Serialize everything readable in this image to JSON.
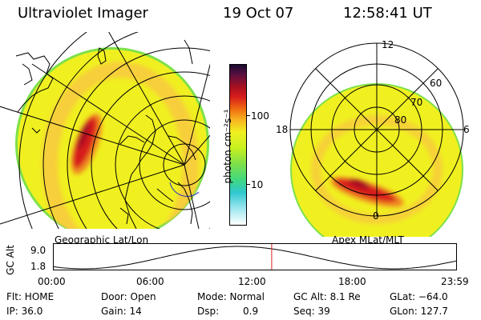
{
  "header": {
    "title": "Ultraviolet Imager",
    "date": "19 Oct 07",
    "time": "12:58:41 UT"
  },
  "colorbar": {
    "unit_label": "photon cm⁻²s⁻¹",
    "tick_100": "100",
    "tick_10": "10"
  },
  "left_panel": {
    "caption": "Geographic Lat/Lon"
  },
  "right_panel": {
    "caption": "Apex MLat/MLT",
    "mlt_12": "12",
    "mlt_18": "18",
    "mlt_6": "6",
    "mlt_0": "0",
    "lat_60": "60",
    "lat_70": "70",
    "lat_80": "80"
  },
  "orbit": {
    "ylabel": "GC Alt",
    "ytick_top": "9.0",
    "ytick_bottom": "1.8",
    "xticks": [
      "00:00",
      "06:00",
      "12:00",
      "18:00",
      "23:59"
    ],
    "current_time_hours": 13.0
  },
  "info": {
    "flt": "Flt: HOME",
    "ip": "IP: 36.0",
    "door": "Door: Open",
    "gain": "Gain: 14",
    "mode": "Mode: Normal",
    "dsp_label": "Dsp:",
    "dsp_value": "0.9",
    "gcalt": "GC Alt: 8.1 Re",
    "seq": "Seq: 39",
    "glat": "GLat: −64.0",
    "glon": "GLon: 127.7"
  },
  "colors": {
    "background_yellow": "#f0f020",
    "green_edge": "#7ee04a",
    "orange": "#f8b020",
    "red": "#d81c1c",
    "dark_red": "#a81020",
    "orbit_marker": "#e02020"
  }
}
